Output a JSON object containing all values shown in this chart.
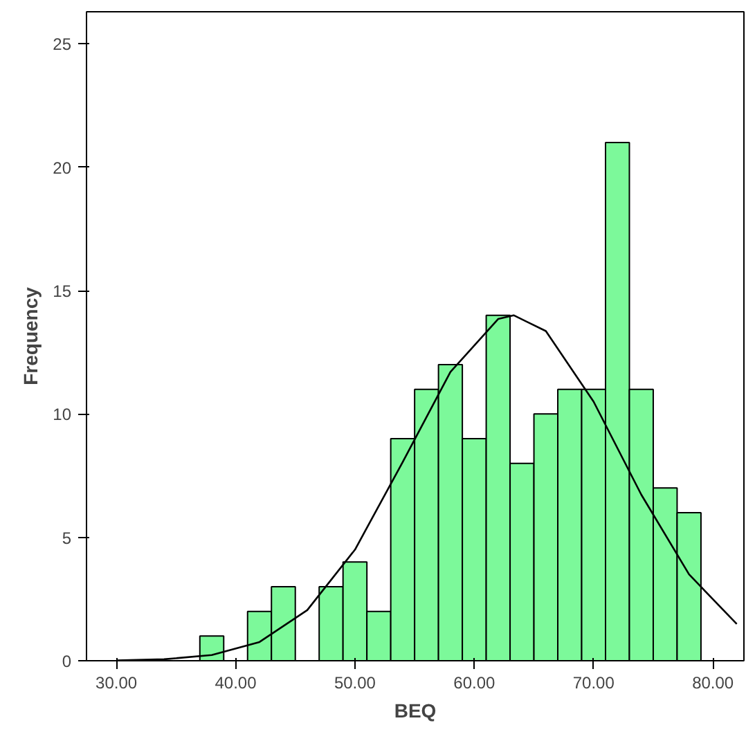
{
  "chart_data": {
    "type": "histogram",
    "xlabel": "BEQ",
    "ylabel": "Frequency",
    "grid": false,
    "xlim": [
      27.5,
      82.6
    ],
    "ylim": [
      0,
      26.3
    ],
    "xticks": [
      {
        "value": 30,
        "label": "30.00"
      },
      {
        "value": 40,
        "label": "40.00"
      },
      {
        "value": 50,
        "label": "50.00"
      },
      {
        "value": 60,
        "label": "60.00"
      },
      {
        "value": 70,
        "label": "70.00"
      },
      {
        "value": 80,
        "label": "80.00"
      }
    ],
    "yticks": [
      0,
      5,
      10,
      15,
      20,
      25
    ],
    "series": [
      {
        "color": "#7cf99a",
        "bins": [
          37,
          39,
          41,
          43,
          45,
          47,
          49,
          51,
          53,
          55,
          57,
          59,
          61,
          63,
          65,
          67,
          69,
          71,
          73,
          75,
          77,
          79
        ],
        "values": [
          1,
          0,
          2,
          3,
          0,
          3,
          4,
          2,
          9,
          11,
          12,
          9,
          14,
          8,
          10,
          11,
          11,
          21,
          11,
          7,
          6
        ]
      },
      {
        "type": "line",
        "color": "#000000",
        "x": [
          30,
          34,
          38,
          42,
          46,
          50,
          54,
          58,
          62,
          63.3,
          66,
          70,
          74,
          78,
          82
        ],
        "values": [
          0.01,
          0.06,
          0.23,
          0.76,
          2.05,
          4.5,
          8.05,
          11.7,
          13.85,
          14,
          13.36,
          10.5,
          6.73,
          3.5,
          1.49
        ]
      }
    ]
  }
}
